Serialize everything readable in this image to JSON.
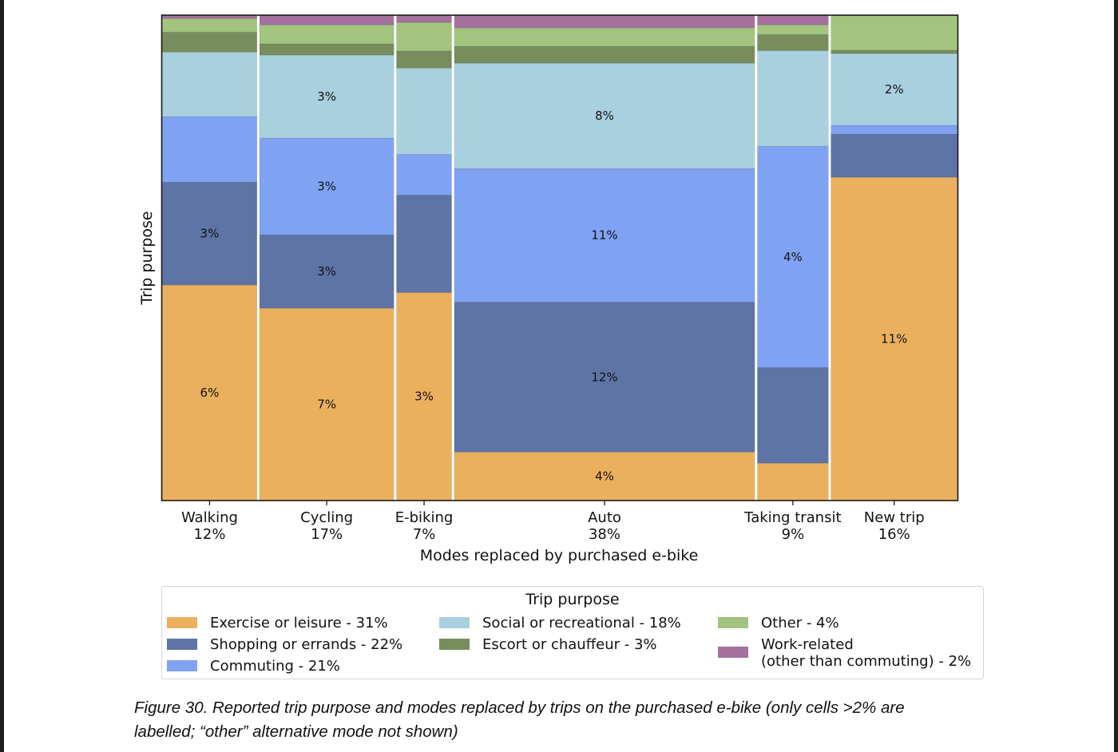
{
  "chart_data": {
    "type": "mosaic",
    "xlabel": "Modes replaced by purchased e-bike",
    "ylabel": "Trip purpose",
    "ylim": [
      0,
      1
    ],
    "grid": false,
    "legend_title": "Trip purpose",
    "legend_position": "bottom",
    "categories": [
      {
        "name": "Walking",
        "share_label": "12%",
        "share": 0.12
      },
      {
        "name": "Cycling",
        "share_label": "17%",
        "share": 0.17
      },
      {
        "name": "E-biking",
        "share_label": "7%",
        "share": 0.07
      },
      {
        "name": "Auto",
        "share_label": "38%",
        "share": 0.38
      },
      {
        "name": "Taking transit",
        "share_label": "9%",
        "share": 0.09
      },
      {
        "name": "New trip",
        "share_label": "16%",
        "share": 0.16
      }
    ],
    "series": [
      {
        "name": "Exercise or leisure",
        "legend_label": "Exercise or leisure - 31%",
        "color": "#ebb05e",
        "values": [
          0.444,
          0.396,
          0.429,
          0.1,
          0.077,
          0.666
        ],
        "labels": [
          "6%",
          "7%",
          "3%",
          "4%",
          "",
          "11%"
        ]
      },
      {
        "name": "Shopping or errands",
        "legend_label": "Shopping or errands - 22%",
        "color": "#5e74a6",
        "values": [
          0.212,
          0.151,
          0.201,
          0.309,
          0.197,
          0.089
        ],
        "labels": [
          "3%",
          "3%",
          "",
          "12%",
          "",
          ""
        ]
      },
      {
        "name": "Commuting",
        "legend_label": "Commuting - 21%",
        "color": "#80a2f3",
        "values": [
          0.135,
          0.199,
          0.084,
          0.275,
          0.456,
          0.018
        ],
        "labels": [
          "",
          "3%",
          "",
          "11%",
          "4%",
          ""
        ]
      },
      {
        "name": "Social or recreational",
        "legend_label": "Social or recreational - 18%",
        "color": "#a8d0df",
        "values": [
          0.133,
          0.171,
          0.178,
          0.217,
          0.197,
          0.148
        ],
        "labels": [
          "",
          "3%",
          "",
          "8%",
          "",
          "2%"
        ]
      },
      {
        "name": "Escort or chauffeur",
        "legend_label": "Escort or chauffeur - 3%",
        "color": "#778e5c",
        "values": [
          0.041,
          0.023,
          0.035,
          0.035,
          0.033,
          0.007
        ],
        "labels": [
          "",
          "",
          "",
          "",
          "",
          ""
        ]
      },
      {
        "name": "Other",
        "legend_label": "Other - 4%",
        "color": "#a2c47e",
        "values": [
          0.028,
          0.039,
          0.059,
          0.038,
          0.02,
          0.072
        ],
        "labels": [
          "",
          "",
          "",
          "",
          "",
          ""
        ]
      },
      {
        "name": "Work-related (other than commuting)",
        "legend_label_line1": "Work-related",
        "legend_label_line2": "(other than commuting) - 2%",
        "color": "#a5719f",
        "values": [
          0.007,
          0.02,
          0.015,
          0.026,
          0.02,
          0.0
        ],
        "labels": [
          "",
          "",
          "",
          "",
          "",
          ""
        ]
      }
    ]
  },
  "caption": {
    "line1": "Figure 30. Reported trip purpose and modes replaced by trips on the purchased e-bike (only cells >2% are",
    "line2": "labelled; “other” alternative mode not shown)"
  }
}
